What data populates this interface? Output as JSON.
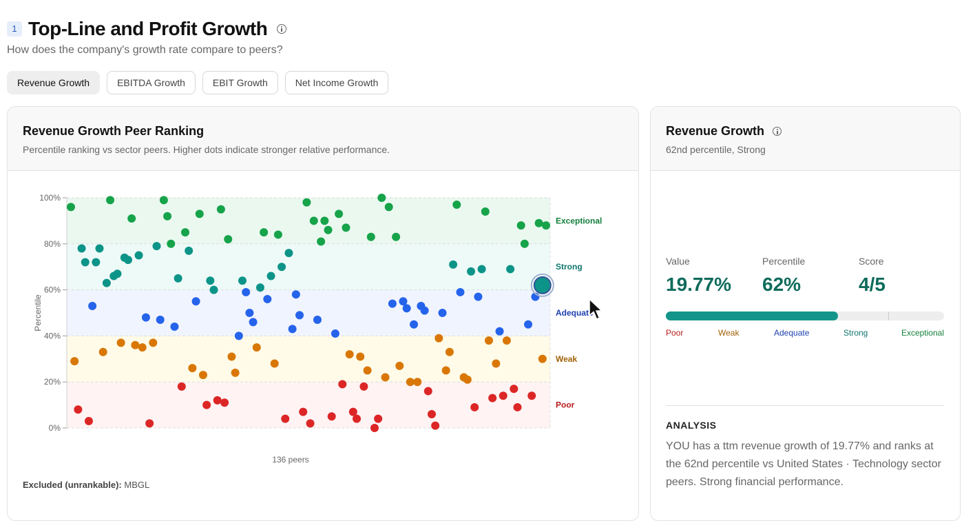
{
  "section": {
    "number": "1",
    "title": "Top-Line and Profit Growth",
    "subtitle": "How does the company's growth rate compare to peers?"
  },
  "tabs": [
    {
      "label": "Revenue Growth",
      "active": true
    },
    {
      "label": "EBITDA Growth",
      "active": false
    },
    {
      "label": "EBIT Growth",
      "active": false
    },
    {
      "label": "Net Income Growth",
      "active": false
    }
  ],
  "chart_card": {
    "title": "Revenue Growth Peer Ranking",
    "subtitle": "Percentile ranking vs sector peers. Higher dots indicate stronger relative performance.",
    "peer_count_label": "136 peers",
    "excluded_label": "Excluded (unrankable):",
    "excluded_value": "MBGL"
  },
  "chart_data": {
    "type": "scatter",
    "ylabel": "Percentile",
    "xlabel": "136 peers",
    "ylim": [
      0,
      100
    ],
    "yticks": [
      "0%",
      "20%",
      "40%",
      "60%",
      "80%",
      "100%"
    ],
    "bands": [
      {
        "label": "Exceptional",
        "from": 80,
        "to": 100,
        "color": "#15803d",
        "fill": "#eaf8ef"
      },
      {
        "label": "Strong",
        "from": 60,
        "to": 80,
        "color": "#0f766e",
        "fill": "#eefaf8"
      },
      {
        "label": "Adequate",
        "from": 40,
        "to": 60,
        "color": "#1e40af",
        "fill": "#f0f4ff"
      },
      {
        "label": "Weak",
        "from": 20,
        "to": 40,
        "color": "#a16207",
        "fill": "#fffbe8"
      },
      {
        "label": "Poor",
        "from": 0,
        "to": 20,
        "color": "#b91c1c",
        "fill": "#fff3f3"
      }
    ],
    "dot_colors": {
      "exceptional": "#16a34a",
      "strong": "#0d9488",
      "adequate": "#2563eb",
      "weak": "#d97706",
      "poor": "#dc2626"
    },
    "peers": [
      {
        "x": 1,
        "y": 96
      },
      {
        "x": 2,
        "y": 29
      },
      {
        "x": 3,
        "y": 8
      },
      {
        "x": 4,
        "y": 78
      },
      {
        "x": 5,
        "y": 72
      },
      {
        "x": 6,
        "y": 3
      },
      {
        "x": 7,
        "y": 53
      },
      {
        "x": 8,
        "y": 72
      },
      {
        "x": 9,
        "y": 78
      },
      {
        "x": 10,
        "y": 33
      },
      {
        "x": 11,
        "y": 63
      },
      {
        "x": 12,
        "y": 99
      },
      {
        "x": 13,
        "y": 66
      },
      {
        "x": 14,
        "y": 67
      },
      {
        "x": 15,
        "y": 37
      },
      {
        "x": 16,
        "y": 74
      },
      {
        "x": 17,
        "y": 73
      },
      {
        "x": 18,
        "y": 91
      },
      {
        "x": 19,
        "y": 36
      },
      {
        "x": 20,
        "y": 75
      },
      {
        "x": 21,
        "y": 35
      },
      {
        "x": 22,
        "y": 48
      },
      {
        "x": 23,
        "y": 2
      },
      {
        "x": 24,
        "y": 37
      },
      {
        "x": 25,
        "y": 79
      },
      {
        "x": 26,
        "y": 47
      },
      {
        "x": 27,
        "y": 99
      },
      {
        "x": 28,
        "y": 92
      },
      {
        "x": 29,
        "y": 80
      },
      {
        "x": 30,
        "y": 44
      },
      {
        "x": 31,
        "y": 65
      },
      {
        "x": 32,
        "y": 18
      },
      {
        "x": 33,
        "y": 85
      },
      {
        "x": 34,
        "y": 77
      },
      {
        "x": 35,
        "y": 26
      },
      {
        "x": 36,
        "y": 55
      },
      {
        "x": 37,
        "y": 93
      },
      {
        "x": 38,
        "y": 23
      },
      {
        "x": 39,
        "y": 10
      },
      {
        "x": 40,
        "y": 64
      },
      {
        "x": 41,
        "y": 60
      },
      {
        "x": 42,
        "y": 12
      },
      {
        "x": 43,
        "y": 95
      },
      {
        "x": 44,
        "y": 11
      },
      {
        "x": 45,
        "y": 82
      },
      {
        "x": 46,
        "y": 31
      },
      {
        "x": 47,
        "y": 24
      },
      {
        "x": 48,
        "y": 40
      },
      {
        "x": 49,
        "y": 64
      },
      {
        "x": 50,
        "y": 59
      },
      {
        "x": 51,
        "y": 50
      },
      {
        "x": 52,
        "y": 46
      },
      {
        "x": 53,
        "y": 35
      },
      {
        "x": 54,
        "y": 61
      },
      {
        "x": 55,
        "y": 85
      },
      {
        "x": 56,
        "y": 56
      },
      {
        "x": 57,
        "y": 66
      },
      {
        "x": 58,
        "y": 28
      },
      {
        "x": 59,
        "y": 84
      },
      {
        "x": 60,
        "y": 70
      },
      {
        "x": 61,
        "y": 4
      },
      {
        "x": 62,
        "y": 76
      },
      {
        "x": 63,
        "y": 43
      },
      {
        "x": 64,
        "y": 58
      },
      {
        "x": 65,
        "y": 49
      },
      {
        "x": 66,
        "y": 7
      },
      {
        "x": 67,
        "y": 98
      },
      {
        "x": 68,
        "y": 2
      },
      {
        "x": 69,
        "y": 90
      },
      {
        "x": 70,
        "y": 47
      },
      {
        "x": 71,
        "y": 81
      },
      {
        "x": 72,
        "y": 90
      },
      {
        "x": 73,
        "y": 86
      },
      {
        "x": 74,
        "y": 5
      },
      {
        "x": 75,
        "y": 41
      },
      {
        "x": 76,
        "y": 93
      },
      {
        "x": 77,
        "y": 19
      },
      {
        "x": 78,
        "y": 87
      },
      {
        "x": 79,
        "y": 32
      },
      {
        "x": 80,
        "y": 7
      },
      {
        "x": 81,
        "y": 4
      },
      {
        "x": 82,
        "y": 31
      },
      {
        "x": 83,
        "y": 18
      },
      {
        "x": 84,
        "y": 25
      },
      {
        "x": 85,
        "y": 83
      },
      {
        "x": 86,
        "y": 0
      },
      {
        "x": 87,
        "y": 4
      },
      {
        "x": 88,
        "y": 100
      },
      {
        "x": 89,
        "y": 22
      },
      {
        "x": 90,
        "y": 96
      },
      {
        "x": 91,
        "y": 54
      },
      {
        "x": 92,
        "y": 83
      },
      {
        "x": 93,
        "y": 27
      },
      {
        "x": 94,
        "y": 55
      },
      {
        "x": 95,
        "y": 52
      },
      {
        "x": 96,
        "y": 20
      },
      {
        "x": 97,
        "y": 45
      },
      {
        "x": 98,
        "y": 20
      },
      {
        "x": 99,
        "y": 53
      },
      {
        "x": 100,
        "y": 51
      },
      {
        "x": 101,
        "y": 16
      },
      {
        "x": 102,
        "y": 6
      },
      {
        "x": 103,
        "y": 1
      },
      {
        "x": 104,
        "y": 39
      },
      {
        "x": 105,
        "y": 50
      },
      {
        "x": 106,
        "y": 25
      },
      {
        "x": 107,
        "y": 33
      },
      {
        "x": 108,
        "y": 71
      },
      {
        "x": 109,
        "y": 97
      },
      {
        "x": 110,
        "y": 59
      },
      {
        "x": 111,
        "y": 22
      },
      {
        "x": 112,
        "y": 21
      },
      {
        "x": 113,
        "y": 68
      },
      {
        "x": 114,
        "y": 9
      },
      {
        "x": 115,
        "y": 57
      },
      {
        "x": 116,
        "y": 69
      },
      {
        "x": 117,
        "y": 94
      },
      {
        "x": 118,
        "y": 38
      },
      {
        "x": 119,
        "y": 13
      },
      {
        "x": 120,
        "y": 28
      },
      {
        "x": 121,
        "y": 42
      },
      {
        "x": 122,
        "y": 14
      },
      {
        "x": 123,
        "y": 38
      },
      {
        "x": 124,
        "y": 69
      },
      {
        "x": 125,
        "y": 17
      },
      {
        "x": 126,
        "y": 9
      },
      {
        "x": 127,
        "y": 88
      },
      {
        "x": 128,
        "y": 80
      },
      {
        "x": 129,
        "y": 45
      },
      {
        "x": 130,
        "y": 14
      },
      {
        "x": 131,
        "y": 57
      },
      {
        "x": 132,
        "y": 89
      },
      {
        "x": 133,
        "y": 30
      },
      {
        "x": 134,
        "y": 88
      }
    ],
    "highlight": {
      "x": 133,
      "y": 62,
      "color": "#0d9488"
    }
  },
  "side_card": {
    "title": "Revenue Growth",
    "subtitle": "62nd percentile, Strong",
    "value_label": "Value",
    "value": "19.77%",
    "percentile_label": "Percentile",
    "percentile": "62%",
    "percentile_fraction": 0.62,
    "score_label": "Score",
    "score": "4/5",
    "scale_labels": [
      {
        "label": "Poor",
        "color": "#b91c1c"
      },
      {
        "label": "Weak",
        "color": "#a16207"
      },
      {
        "label": "Adequate",
        "color": "#1e40af"
      },
      {
        "label": "Strong",
        "color": "#0f766e"
      },
      {
        "label": "Exceptional",
        "color": "#15803d"
      }
    ],
    "analysis_title": "ANALYSIS",
    "analysis_text": "YOU has a ttm revenue growth of 19.77% and ranks at the 62nd percentile vs United States · Technology sector peers. Strong financial performance."
  },
  "icons": {
    "info": "info-icon",
    "cursor": "mouse-pointer-icon"
  }
}
